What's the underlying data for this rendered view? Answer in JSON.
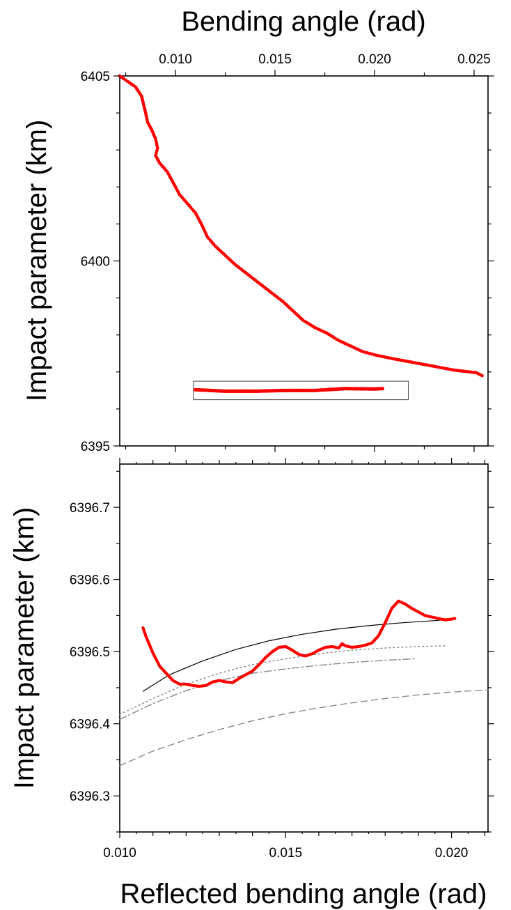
{
  "chart_data": [
    {
      "type": "scatter",
      "panel": "top",
      "xlabel": "Bending angle (rad)",
      "ylabel": "Impact parameter (km)",
      "xlim": [
        0.0072,
        0.0257
      ],
      "ylim": [
        6395,
        6405
      ],
      "x_ticks": [
        "0.010",
        "0.015",
        "0.020",
        "0.025"
      ],
      "y_ticks": [
        "6395",
        "6400",
        "6405"
      ],
      "series": [
        {
          "color": "#ff0000",
          "marker": "dot",
          "points": [
            [
              0.0072,
              6405.0
            ],
            [
              0.0076,
              6404.85
            ],
            [
              0.008,
              6404.7
            ],
            [
              0.0083,
              6404.45
            ],
            [
              0.0085,
              6404.0
            ],
            [
              0.0086,
              6403.75
            ],
            [
              0.0088,
              6403.55
            ],
            [
              0.009,
              6403.3
            ],
            [
              0.0091,
              6403.05
            ],
            [
              0.009,
              6402.85
            ],
            [
              0.0092,
              6402.65
            ],
            [
              0.0096,
              6402.4
            ],
            [
              0.0099,
              6402.1
            ],
            [
              0.0102,
              6401.8
            ],
            [
              0.0106,
              6401.55
            ],
            [
              0.011,
              6401.3
            ],
            [
              0.0113,
              6401.0
            ],
            [
              0.0116,
              6400.65
            ],
            [
              0.012,
              6400.4
            ],
            [
              0.0125,
              6400.15
            ],
            [
              0.013,
              6399.9
            ],
            [
              0.0136,
              6399.65
            ],
            [
              0.0142,
              6399.4
            ],
            [
              0.0148,
              6399.15
            ],
            [
              0.0154,
              6398.9
            ],
            [
              0.0159,
              6398.65
            ],
            [
              0.0164,
              6398.4
            ],
            [
              0.017,
              6398.2
            ],
            [
              0.0176,
              6398.05
            ],
            [
              0.0182,
              6397.85
            ],
            [
              0.0188,
              6397.7
            ],
            [
              0.0194,
              6397.55
            ],
            [
              0.0201,
              6397.45
            ],
            [
              0.021,
              6397.35
            ],
            [
              0.022,
              6397.25
            ],
            [
              0.023,
              6397.15
            ],
            [
              0.024,
              6397.05
            ],
            [
              0.0251,
              6396.98
            ],
            [
              0.0254,
              6396.9
            ]
          ]
        }
      ],
      "inset_box": {
        "x": [
          0.0109,
          0.0217
        ],
        "y": [
          6396.25,
          6396.75
        ]
      },
      "inset_series": [
        [
          0.011,
          6396.52
        ],
        [
          0.0125,
          6396.48
        ],
        [
          0.014,
          6396.48
        ],
        [
          0.0155,
          6396.5
        ],
        [
          0.017,
          6396.5
        ],
        [
          0.0185,
          6396.55
        ],
        [
          0.02,
          6396.54
        ],
        [
          0.0204,
          6396.55
        ]
      ]
    },
    {
      "type": "line",
      "panel": "bottom",
      "xlabel": "Reflected bending angle (rad)",
      "ylabel": "Impact parameter (km)",
      "xlim": [
        0.01,
        0.0211
      ],
      "ylim": [
        6396.25,
        6396.76
      ],
      "x_ticks": [
        "0.010",
        "0.015",
        "0.020"
      ],
      "y_ticks": [
        "6396.3",
        "6396.4",
        "6396.5",
        "6396.6",
        "6396.7"
      ],
      "series": [
        {
          "color": "#ff0000",
          "style": "thick",
          "points": [
            [
              0.0107,
              6396.533
            ],
            [
              0.0108,
              6396.52
            ],
            [
              0.011,
              6396.498
            ],
            [
              0.0112,
              6396.48
            ],
            [
              0.0114,
              6396.47
            ],
            [
              0.0116,
              6396.46
            ],
            [
              0.0118,
              6396.455
            ],
            [
              0.012,
              6396.455
            ],
            [
              0.0122,
              6396.453
            ],
            [
              0.0124,
              6396.452
            ],
            [
              0.0126,
              6396.453
            ],
            [
              0.0128,
              6396.458
            ],
            [
              0.013,
              6396.46
            ],
            [
              0.0132,
              6396.458
            ],
            [
              0.0134,
              6396.457
            ],
            [
              0.0136,
              6396.463
            ],
            [
              0.0138,
              6396.468
            ],
            [
              0.014,
              6396.473
            ],
            [
              0.0142,
              6396.482
            ],
            [
              0.0144,
              6396.492
            ],
            [
              0.0146,
              6396.5
            ],
            [
              0.0148,
              6396.506
            ],
            [
              0.015,
              6396.507
            ],
            [
              0.0152,
              6396.502
            ],
            [
              0.0154,
              6396.496
            ],
            [
              0.0156,
              6396.494
            ],
            [
              0.0158,
              6396.497
            ],
            [
              0.016,
              6396.502
            ],
            [
              0.0162,
              6396.506
            ],
            [
              0.0164,
              6396.507
            ],
            [
              0.0166,
              6396.505
            ],
            [
              0.0167,
              6396.511
            ],
            [
              0.0168,
              6396.508
            ],
            [
              0.017,
              6396.506
            ],
            [
              0.0172,
              6396.507
            ],
            [
              0.0174,
              6396.509
            ],
            [
              0.0176,
              6396.512
            ],
            [
              0.0178,
              6396.522
            ],
            [
              0.018,
              6396.54
            ],
            [
              0.0182,
              6396.56
            ],
            [
              0.0184,
              6396.57
            ],
            [
              0.0186,
              6396.566
            ],
            [
              0.0188,
              6396.56
            ],
            [
              0.019,
              6396.555
            ],
            [
              0.0192,
              6396.55
            ],
            [
              0.0194,
              6396.548
            ],
            [
              0.0196,
              6396.546
            ],
            [
              0.0198,
              6396.544
            ],
            [
              0.02,
              6396.545
            ],
            [
              0.0201,
              6396.546
            ]
          ]
        },
        {
          "color": "#000000",
          "style": "solid",
          "points": [
            [
              0.0107,
              6396.445
            ],
            [
              0.0115,
              6396.468
            ],
            [
              0.0125,
              6396.487
            ],
            [
              0.0135,
              6396.503
            ],
            [
              0.0145,
              6396.515
            ],
            [
              0.0155,
              6396.524
            ],
            [
              0.0165,
              6396.531
            ],
            [
              0.0175,
              6396.536
            ],
            [
              0.0185,
              6396.54
            ],
            [
              0.0195,
              6396.543
            ],
            [
              0.02,
              6396.545
            ]
          ]
        },
        {
          "color": "#888888",
          "style": "dotted",
          "points": [
            [
              0.01,
              6396.413
            ],
            [
              0.011,
              6396.435
            ],
            [
              0.012,
              6396.455
            ],
            [
              0.013,
              6396.47
            ],
            [
              0.014,
              6396.482
            ],
            [
              0.015,
              6396.49
            ],
            [
              0.016,
              6396.497
            ],
            [
              0.017,
              6396.502
            ],
            [
              0.018,
              6396.505
            ],
            [
              0.019,
              6396.507
            ],
            [
              0.0198,
              6396.508
            ]
          ]
        },
        {
          "color": "#888888",
          "style": "dashdot",
          "points": [
            [
              0.01,
              6396.406
            ],
            [
              0.011,
              6396.428
            ],
            [
              0.012,
              6396.446
            ],
            [
              0.013,
              6396.46
            ],
            [
              0.014,
              6396.47
            ],
            [
              0.015,
              6396.476
            ],
            [
              0.016,
              6396.481
            ],
            [
              0.017,
              6396.485
            ],
            [
              0.018,
              6396.488
            ],
            [
              0.0189,
              6396.49
            ]
          ]
        },
        {
          "color": "#888888",
          "style": "dashed",
          "points": [
            [
              0.01,
              6396.342
            ],
            [
              0.011,
              6396.362
            ],
            [
              0.012,
              6396.378
            ],
            [
              0.013,
              6396.392
            ],
            [
              0.014,
              6396.404
            ],
            [
              0.015,
              6396.414
            ],
            [
              0.016,
              6396.422
            ],
            [
              0.017,
              6396.429
            ],
            [
              0.018,
              6396.435
            ],
            [
              0.019,
              6396.44
            ],
            [
              0.02,
              6396.444
            ],
            [
              0.0211,
              6396.447
            ]
          ]
        }
      ]
    }
  ]
}
